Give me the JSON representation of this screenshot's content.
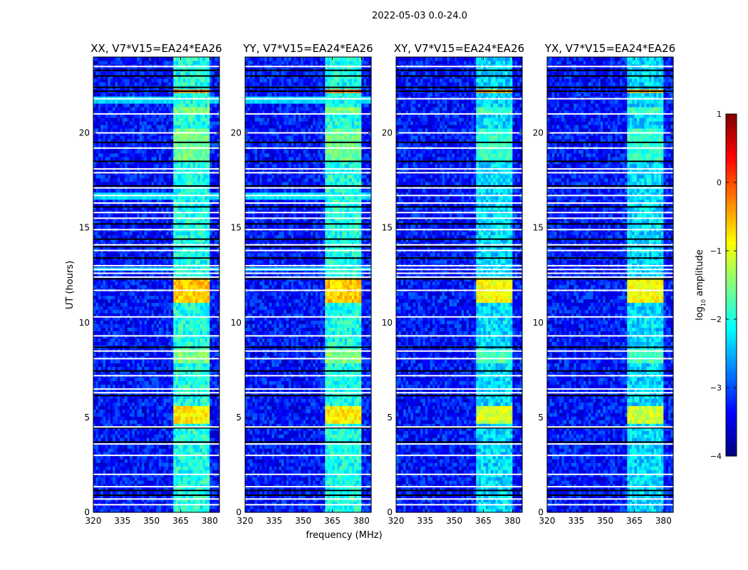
{
  "chart_data": {
    "type": "heatmap",
    "title": "2022-05-03 0.0-24.0",
    "xlabel": "frequency (MHz)",
    "ylabel": "UT (hours)",
    "xlim": [
      320,
      385
    ],
    "ylim": [
      0,
      24
    ],
    "xticks": [
      "320",
      "335",
      "350",
      "365",
      "380"
    ],
    "xtick_values": [
      320,
      335,
      350,
      365,
      380
    ],
    "yticks": [
      "0",
      "5",
      "10",
      "15",
      "20"
    ],
    "ytick_values": [
      0,
      5,
      10,
      15,
      20
    ],
    "panels": [
      {
        "title": "XX, V7*V15=EA24*EA26",
        "pol": "XX",
        "cyan_bands": true
      },
      {
        "title": "YY, V7*V15=EA24*EA26",
        "pol": "YY",
        "cyan_bands": true
      },
      {
        "title": "XY, V7*V15=EA24*EA26",
        "pol": "XY",
        "cyan_bands": false
      },
      {
        "title": "YX, V7*V15=EA24*EA26",
        "pol": "YX",
        "cyan_bands": false
      }
    ],
    "background_log_amp": -3.3,
    "rfi_bands_mhz": [
      [
        361,
        366
      ],
      [
        366.3,
        371
      ],
      [
        371.4,
        375.8
      ],
      [
        376.5,
        380.6
      ]
    ],
    "rfi_band_log_amp": -2.0,
    "events": [
      {
        "t0": 11.0,
        "t1": 12.3,
        "log_amp": -0.6
      },
      {
        "t0": 4.7,
        "t1": 5.7,
        "log_amp": -0.8
      },
      {
        "t0": 22.15,
        "t1": 22.3,
        "log_amp": -0.2
      },
      {
        "t0": 7.8,
        "t1": 8.7,
        "log_amp": -1.5
      },
      {
        "t0": 18.6,
        "t1": 20.2,
        "log_amp": -1.6
      },
      {
        "t0": 21.0,
        "t1": 21.4,
        "log_amp": -1.5
      }
    ],
    "cyan_time_ranges": [
      [
        21.5,
        22.0
      ],
      [
        16.5,
        16.8
      ],
      [
        12.7,
        13.0
      ]
    ],
    "flagged_white_hours": [
      23.5,
      21.8,
      21.0,
      20.0,
      19.2,
      18.1,
      17.9,
      17.1,
      16.7,
      16.3,
      15.8,
      15.5,
      14.9,
      14.1,
      13.8,
      13.0,
      12.8,
      12.6,
      12.4,
      11.7,
      10.3,
      9.3,
      8.5,
      8.1,
      7.2,
      6.5,
      6.3,
      4.5,
      3.6,
      3.0,
      2.0,
      1.35,
      0.7,
      0.4
    ],
    "dark_line_hours": [
      23.3,
      23.0,
      22.4,
      22.2,
      19.5,
      18.5,
      17.2,
      16.1,
      15.2,
      14.4,
      14.0,
      13.4,
      12.3,
      8.7,
      7.45,
      6.15,
      4.45,
      3.7,
      1.15,
      0.9
    ],
    "colorbar": {
      "label": "log",
      "label_sub": "10",
      "label_rest": " amplitude",
      "colormap": "jet",
      "range": [
        -4,
        1
      ],
      "ticks": [
        "1",
        "0",
        "−1",
        "−2",
        "−3",
        "−4"
      ],
      "tick_values": [
        1,
        0,
        -1,
        -2,
        -3,
        -4
      ]
    }
  }
}
